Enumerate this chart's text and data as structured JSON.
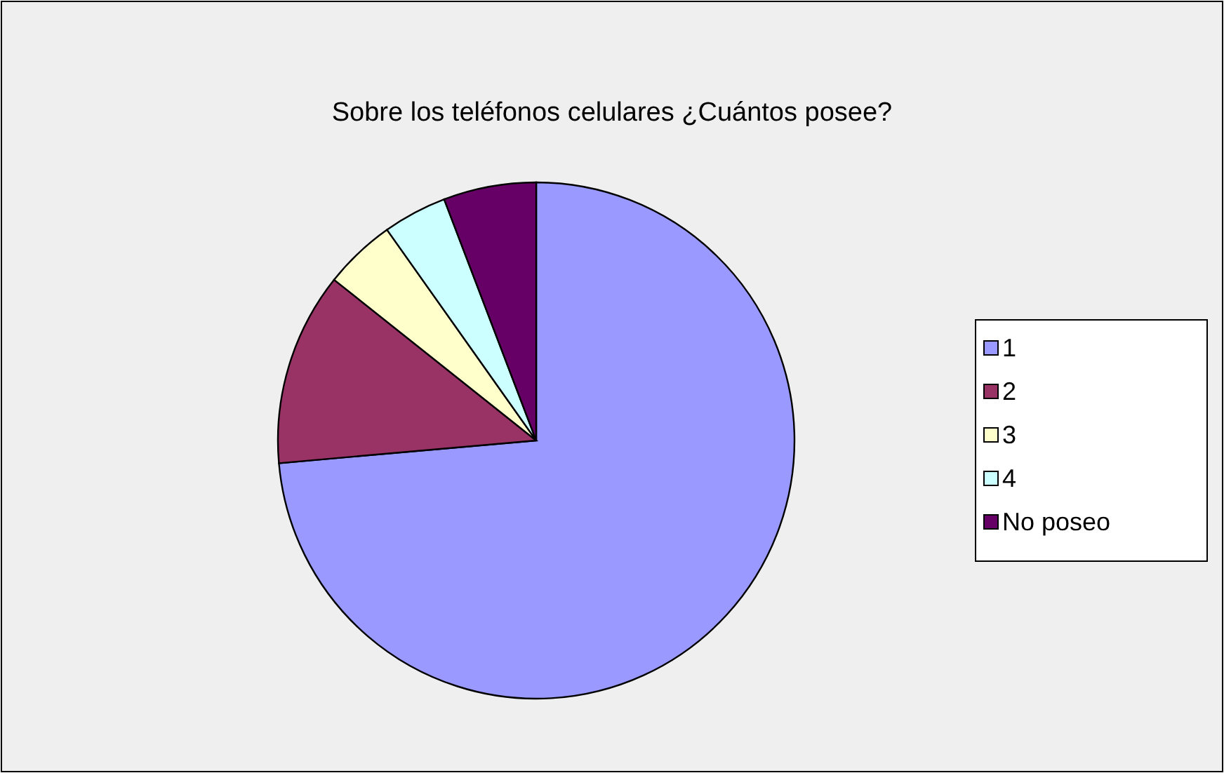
{
  "chart_data": {
    "type": "pie",
    "title": "Sobre los teléfonos celulares ¿Cuántos posee?",
    "categories": [
      "1",
      "2",
      "3",
      "4",
      "No poseo"
    ],
    "values": [
      73.6,
      12.1,
      4.5,
      4,
      5.8
    ],
    "colors": [
      "#9999ff",
      "#993366",
      "#ffffcc",
      "#ccffff",
      "#660066"
    ],
    "legend": "right"
  }
}
